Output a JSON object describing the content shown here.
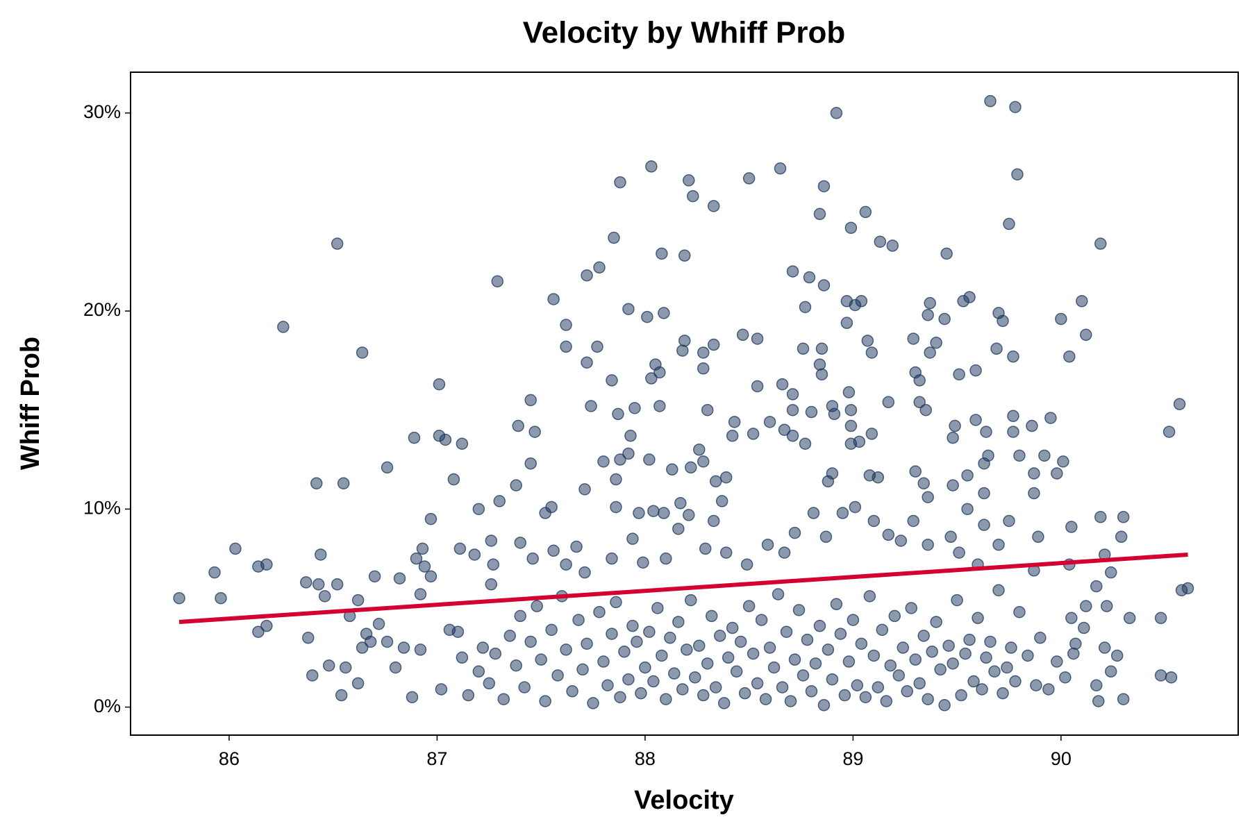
{
  "chart_data": {
    "type": "scatter",
    "title": "Velocity by Whiff Prob",
    "xlabel": "Velocity",
    "ylabel": "Whiff Prob",
    "color": "#1b355e",
    "xlim": [
      85.526,
      90.852
    ],
    "ylim": [
      -1.415,
      32.06
    ],
    "xticks": [
      86,
      87,
      88,
      89,
      90
    ],
    "yticks": [
      {
        "value": 0,
        "label": "0%"
      },
      {
        "value": 10,
        "label": "10%"
      },
      {
        "value": 20,
        "label": "20%"
      },
      {
        "value": 30,
        "label": "30%"
      }
    ],
    "grid": false,
    "trend_line": {
      "color": "#d50032",
      "x": [
        85.76,
        90.61
      ],
      "values": [
        4.3,
        7.7
      ]
    },
    "x": [
      89.66,
      89.78,
      89.79,
      89.75,
      90.19,
      89.56,
      89.53,
      90.1,
      89.7,
      89.72,
      90.0,
      90.12,
      89.69,
      89.77,
      90.04,
      89.59,
      89.51,
      90.57,
      89.77,
      89.59,
      89.95,
      89.86,
      89.49,
      89.64,
      89.77,
      90.52,
      89.48,
      89.65,
      89.8,
      89.92,
      90.01,
      89.63,
      89.87,
      89.98,
      89.55,
      89.48,
      89.63,
      89.87,
      89.55,
      90.19,
      89.63,
      89.75,
      90.05,
      89.89,
      90.29,
      88.92,
      88.86,
      88.65,
      88.5,
      89.06,
      88.84,
      88.99,
      89.13,
      89.19,
      89.45,
      88.79,
      88.71,
      88.86,
      88.97,
      89.01,
      89.04,
      88.77,
      88.97,
      89.37,
      89.36,
      89.44,
      89.07,
      89.09,
      89.29,
      89.37,
      89.4,
      88.85,
      88.76,
      88.84,
      88.85,
      89.3,
      89.32,
      88.98,
      89.17,
      89.32,
      89.35,
      88.71,
      88.71,
      88.8,
      88.9,
      88.91,
      88.99,
      88.99,
      89.09,
      89.03,
      88.99,
      88.77,
      89.3,
      89.08,
      89.12,
      89.34,
      89.36,
      88.88,
      88.9,
      88.71,
      88.67,
      88.6,
      88.66,
      88.54,
      88.52,
      88.43,
      88.42,
      88.47,
      88.54,
      88.33,
      88.28,
      88.28,
      88.18,
      88.19,
      88.21,
      88.23,
      88.33,
      88.19,
      88.08,
      88.03,
      88.09,
      88.01,
      88.05,
      88.07,
      88.03,
      88.07,
      87.95,
      87.87,
      87.93,
      87.78,
      87.72,
      87.85,
      87.88,
      87.92,
      87.77,
      87.72,
      87.62,
      87.56,
      87.62,
      87.84,
      87.74,
      87.8,
      87.88,
      87.92,
      87.86,
      87.71,
      88.02,
      88.13,
      88.22,
      88.26,
      88.28,
      88.3,
      88.34,
      88.39,
      88.17,
      88.33,
      88.37,
      87.86,
      87.97,
      88.04,
      88.09,
      88.21,
      88.16,
      87.94,
      87.67,
      87.45,
      87.39,
      87.45,
      87.47,
      87.38,
      87.29,
      87.01,
      87.01,
      87.04,
      87.12,
      86.89,
      86.76,
      87.08,
      87.2,
      87.3,
      86.97,
      87.55,
      87.52,
      86.64,
      86.26,
      86.52,
      86.42,
      86.55,
      86.44,
      86.03,
      85.93,
      85.96,
      85.76,
      86.14,
      86.18,
      86.37,
      86.43,
      86.46,
      86.52,
      86.62,
      86.7,
      86.82,
      86.93,
      86.9,
      86.94,
      86.92,
      86.97,
      87.11,
      87.18,
      87.26,
      87.27,
      87.26,
      87.4,
      87.46,
      87.56,
      87.62,
      87.71,
      87.84,
      87.99,
      88.1,
      88.29,
      88.39,
      88.49,
      88.59,
      88.67,
      88.72,
      88.87,
      88.81,
      88.95,
      89.01,
      89.1,
      89.17,
      89.23,
      89.29,
      89.36,
      89.47,
      89.51,
      89.6,
      89.7,
      89.87,
      90.04,
      90.21,
      90.24,
      90.3,
      90.05,
      90.07,
      90.12,
      90.17,
      90.11,
      90.22,
      90.21,
      90.27,
      90.17,
      90.18,
      90.3,
      90.24,
      90.33,
      90.48,
      90.48,
      90.53,
      90.58,
      90.61,
      86.14,
      86.18,
      86.38,
      86.4,
      86.48,
      86.54,
      86.56,
      86.62,
      86.68,
      86.58,
      87.02,
      87.06,
      87.1,
      87.12,
      87.15,
      87.2,
      87.22,
      87.25,
      87.28,
      87.32,
      87.35,
      87.38,
      87.4,
      87.42,
      87.45,
      87.48,
      87.5,
      87.52,
      87.55,
      87.58,
      87.6,
      87.62,
      87.65,
      87.68,
      87.7,
      87.72,
      87.75,
      87.78,
      87.8,
      87.82,
      87.84,
      87.86,
      87.88,
      87.9,
      87.92,
      87.94,
      87.96,
      87.98,
      88.0,
      88.02,
      88.04,
      88.06,
      88.08,
      88.1,
      88.12,
      88.14,
      88.16,
      88.18,
      88.2,
      88.22,
      88.24,
      88.26,
      88.28,
      88.3,
      88.32,
      88.34,
      88.36,
      88.38,
      88.4,
      88.42,
      88.44,
      88.46,
      88.48,
      88.5,
      88.52,
      88.54,
      88.56,
      88.58,
      88.6,
      88.62,
      88.64,
      88.66,
      88.68,
      88.7,
      88.72,
      88.74,
      88.76,
      88.78,
      88.8,
      88.82,
      88.84,
      88.86,
      88.88,
      88.9,
      88.92,
      88.94,
      88.96,
      88.98,
      89.0,
      89.02,
      89.04,
      89.06,
      89.08,
      89.1,
      89.12,
      89.14,
      89.16,
      89.18,
      89.2,
      89.22,
      89.24,
      89.26,
      89.28,
      89.3,
      89.32,
      89.34,
      89.36,
      89.38,
      89.4,
      89.42,
      89.44,
      89.46,
      89.48,
      89.5,
      89.52,
      89.54,
      89.56,
      89.58,
      89.6,
      89.62,
      89.64,
      89.66,
      89.68,
      89.7,
      89.72,
      89.74,
      89.76,
      89.78,
      89.8,
      89.84,
      89.88,
      89.9,
      89.94,
      89.98,
      90.02,
      90.06,
      86.88,
      86.92,
      86.84,
      86.8,
      86.76,
      86.72,
      86.66,
      86.64
    ],
    "values": [
      30.6,
      30.3,
      26.9,
      24.4,
      23.4,
      20.7,
      20.5,
      20.5,
      19.9,
      19.5,
      19.6,
      18.8,
      18.1,
      17.7,
      17.7,
      17.0,
      16.8,
      15.3,
      14.7,
      14.5,
      14.6,
      14.2,
      14.2,
      13.9,
      13.9,
      13.9,
      13.6,
      12.7,
      12.7,
      12.7,
      12.4,
      12.3,
      11.8,
      11.8,
      11.7,
      11.2,
      10.8,
      10.8,
      10.0,
      9.6,
      9.2,
      9.4,
      9.1,
      8.6,
      8.6,
      30.0,
      26.3,
      27.2,
      26.7,
      25.0,
      24.9,
      24.2,
      23.5,
      23.3,
      22.9,
      21.7,
      22.0,
      21.3,
      20.5,
      20.3,
      20.5,
      20.2,
      19.4,
      20.4,
      19.8,
      19.6,
      18.5,
      17.9,
      18.6,
      17.9,
      18.4,
      18.1,
      18.1,
      17.3,
      16.8,
      16.9,
      16.5,
      15.9,
      15.4,
      15.4,
      15.0,
      15.8,
      15.0,
      14.9,
      15.2,
      14.8,
      15.0,
      14.2,
      13.8,
      13.4,
      13.3,
      13.3,
      11.9,
      11.7,
      11.6,
      11.3,
      10.6,
      11.4,
      11.8,
      13.7,
      14.0,
      14.4,
      16.3,
      16.2,
      13.8,
      14.4,
      13.7,
      18.8,
      18.6,
      18.3,
      17.9,
      17.1,
      18.0,
      18.5,
      26.6,
      25.8,
      25.3,
      22.8,
      22.9,
      27.3,
      19.9,
      19.7,
      17.3,
      16.9,
      16.6,
      15.2,
      15.1,
      14.8,
      13.7,
      22.2,
      21.8,
      23.7,
      26.5,
      20.1,
      18.2,
      17.4,
      19.3,
      20.6,
      18.2,
      16.5,
      15.2,
      12.4,
      12.5,
      12.8,
      11.5,
      11.0,
      12.5,
      12.0,
      12.1,
      13.0,
      12.4,
      15.0,
      11.4,
      11.6,
      10.3,
      9.4,
      10.4,
      10.1,
      9.8,
      9.9,
      9.8,
      9.7,
      9.0,
      8.5,
      8.1,
      12.3,
      14.2,
      15.5,
      13.9,
      11.2,
      21.5,
      16.3,
      13.7,
      13.5,
      13.3,
      13.6,
      12.1,
      11.5,
      10.0,
      10.4,
      9.5,
      10.1,
      9.8,
      17.9,
      19.2,
      23.4,
      11.3,
      11.3,
      7.7,
      8.0,
      6.8,
      5.5,
      5.5,
      7.1,
      7.2,
      6.3,
      6.2,
      5.6,
      6.2,
      5.4,
      6.6,
      6.5,
      8.0,
      7.5,
      7.1,
      5.7,
      6.6,
      8.0,
      7.7,
      8.4,
      7.2,
      6.2,
      8.3,
      7.5,
      7.9,
      7.2,
      6.8,
      7.5,
      7.3,
      7.5,
      8.0,
      7.8,
      7.2,
      8.2,
      7.8,
      8.8,
      8.6,
      9.8,
      9.8,
      10.1,
      9.4,
      8.7,
      8.4,
      9.4,
      8.2,
      8.6,
      7.8,
      7.2,
      8.2,
      6.9,
      7.2,
      7.7,
      6.8,
      9.6,
      4.5,
      3.2,
      5.1,
      6.1,
      4.0,
      5.1,
      3.0,
      2.6,
      1.1,
      0.3,
      0.4,
      1.8,
      4.5,
      4.5,
      1.6,
      1.5,
      5.9,
      6.0,
      3.8,
      4.1,
      3.5,
      1.6,
      2.1,
      0.6,
      2.0,
      1.2,
      3.3,
      4.6,
      0.9,
      3.9,
      3.8,
      2.5,
      0.6,
      1.8,
      3.0,
      1.2,
      2.7,
      0.4,
      3.6,
      2.1,
      4.6,
      1.0,
      3.3,
      5.1,
      2.4,
      0.3,
      3.9,
      1.6,
      5.6,
      2.9,
      0.8,
      4.4,
      1.9,
      3.2,
      0.2,
      4.8,
      2.3,
      1.1,
      3.7,
      5.3,
      0.5,
      2.8,
      1.4,
      4.1,
      3.3,
      0.7,
      2.0,
      3.8,
      1.3,
      5.0,
      2.6,
      0.4,
      3.5,
      1.7,
      4.3,
      0.9,
      2.9,
      5.4,
      1.5,
      3.1,
      0.6,
      2.2,
      4.6,
      1.0,
      3.6,
      0.2,
      2.5,
      4.0,
      1.8,
      3.3,
      0.7,
      5.1,
      2.7,
      1.2,
      4.4,
      0.4,
      3.0,
      2.0,
      5.7,
      1.0,
      3.8,
      0.3,
      2.4,
      4.9,
      1.6,
      3.4,
      0.8,
      2.2,
      4.1,
      0.1,
      2.9,
      1.4,
      5.2,
      3.7,
      0.6,
      2.3,
      4.4,
      1.1,
      3.2,
      0.5,
      5.6,
      2.6,
      1.0,
      3.9,
      0.3,
      2.1,
      4.6,
      1.6,
      3.0,
      0.8,
      5.0,
      2.4,
      1.2,
      3.6,
      0.4,
      2.8,
      4.3,
      1.9,
      0.1,
      3.1,
      2.2,
      5.4,
      0.6,
      2.7,
      3.4,
      1.3,
      4.5,
      0.9,
      2.5,
      3.3,
      1.8,
      5.9,
      0.7,
      2.0,
      3.0,
      1.3,
      4.8,
      2.6,
      1.1,
      3.5,
      0.9,
      2.3,
      1.5,
      2.7,
      0.5,
      2.9,
      3.0,
      2.0,
      3.3,
      4.2,
      3.7,
      3.0
    ]
  }
}
